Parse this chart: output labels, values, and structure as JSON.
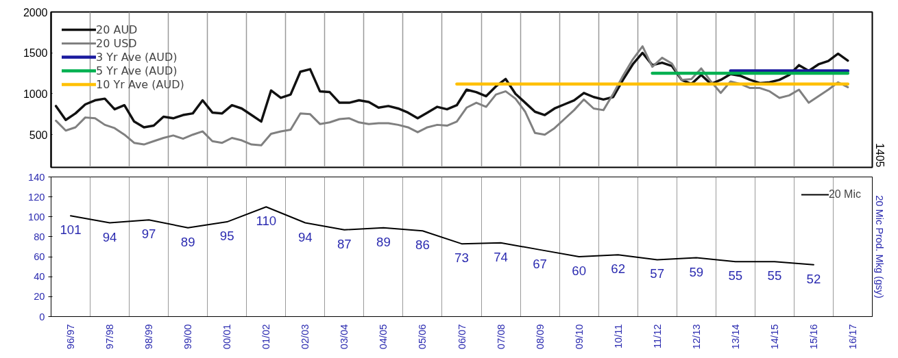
{
  "chart_data": [
    {
      "type": "line",
      "categories": [
        null,
        null,
        null,
        null,
        null,
        null,
        null,
        null,
        null,
        null,
        null,
        null,
        null,
        null,
        null,
        null,
        null,
        null,
        null,
        null,
        null,
        null,
        null,
        null,
        null,
        null,
        null,
        null,
        null,
        null,
        null,
        null,
        null,
        null,
        null,
        null,
        null,
        null,
        null,
        null,
        null,
        null,
        null,
        null,
        null,
        null,
        null,
        null,
        null,
        null,
        null,
        null,
        null,
        null,
        null,
        null,
        null,
        null,
        null,
        null,
        null,
        null,
        null,
        null,
        null,
        null,
        null,
        null,
        null,
        null,
        null,
        null,
        null,
        null,
        null,
        null,
        null,
        null,
        null,
        null,
        null,
        null,
        null,
        null
      ],
      "ylim": [
        100,
        2000
      ],
      "yticks": [
        500,
        1000,
        1500,
        2000
      ],
      "tick_labels": "y",
      "grid": "x",
      "legend": "top left",
      "annotations": [
        "1405"
      ],
      "series": [
        {
          "name": "20 AUD",
          "color": "#111111",
          "values": [
            850,
            680,
            760,
            870,
            920,
            940,
            810,
            860,
            660,
            590,
            610,
            720,
            700,
            740,
            760,
            920,
            770,
            760,
            860,
            820,
            740,
            660,
            1040,
            950,
            990,
            1270,
            1300,
            1030,
            1020,
            890,
            890,
            920,
            900,
            830,
            850,
            820,
            770,
            700,
            770,
            840,
            810,
            860,
            1050,
            1020,
            970,
            1090,
            1180,
            1000,
            890,
            780,
            740,
            820,
            870,
            920,
            1010,
            960,
            930,
            960,
            1170,
            1360,
            1500,
            1350,
            1380,
            1340,
            1170,
            1120,
            1230,
            1120,
            1170,
            1240,
            1220,
            1170,
            1130,
            1140,
            1170,
            1230,
            1350,
            1280,
            1360,
            1400,
            1490,
            1405,
            null,
            null
          ]
        },
        {
          "name": "20 USD",
          "color": "#808080",
          "values": [
            670,
            550,
            590,
            710,
            700,
            620,
            580,
            500,
            400,
            380,
            420,
            460,
            490,
            450,
            500,
            540,
            420,
            400,
            460,
            430,
            380,
            370,
            510,
            540,
            560,
            760,
            750,
            630,
            650,
            690,
            700,
            650,
            630,
            640,
            640,
            620,
            590,
            530,
            590,
            620,
            610,
            660,
            830,
            890,
            840,
            990,
            1030,
            940,
            780,
            520,
            500,
            580,
            690,
            800,
            930,
            820,
            800,
            1000,
            1220,
            1420,
            1580,
            1330,
            1440,
            1370,
            1170,
            1180,
            1310,
            1150,
            1010,
            1150,
            1120,
            1070,
            1070,
            1030,
            950,
            980,
            1050,
            890,
            970,
            1050,
            1140,
            1080,
            null,
            null
          ]
        },
        {
          "name": "3 Yr Ave (AUD)",
          "color": "#1a1a9e",
          "values": [
            null,
            null,
            null,
            null,
            null,
            null,
            null,
            null,
            null,
            null,
            null,
            null,
            null,
            null,
            null,
            null,
            null,
            null,
            null,
            null,
            null,
            null,
            null,
            null,
            null,
            null,
            null,
            null,
            null,
            null,
            null,
            null,
            null,
            null,
            null,
            null,
            null,
            null,
            null,
            null,
            null,
            null,
            null,
            null,
            null,
            null,
            null,
            null,
            null,
            null,
            null,
            null,
            null,
            null,
            null,
            null,
            null,
            null,
            null,
            null,
            null,
            null,
            null,
            null,
            null,
            null,
            null,
            null,
            null,
            1280,
            1280,
            1280,
            1280,
            1280,
            1280,
            1280,
            1280,
            1280,
            1280,
            1280,
            1280,
            1280,
            null,
            null
          ]
        },
        {
          "name": "5 Yr Ave (AUD)",
          "color": "#00b050",
          "values": [
            null,
            null,
            null,
            null,
            null,
            null,
            null,
            null,
            null,
            null,
            null,
            null,
            null,
            null,
            null,
            null,
            null,
            null,
            null,
            null,
            null,
            null,
            null,
            null,
            null,
            null,
            null,
            null,
            null,
            null,
            null,
            null,
            null,
            null,
            null,
            null,
            null,
            null,
            null,
            null,
            null,
            null,
            null,
            null,
            null,
            null,
            null,
            null,
            null,
            null,
            null,
            null,
            null,
            null,
            null,
            null,
            null,
            null,
            null,
            null,
            null,
            1250,
            1250,
            1250,
            1250,
            1250,
            1250,
            1250,
            1250,
            1250,
            1250,
            1250,
            1250,
            1250,
            1250,
            1250,
            1250,
            1250,
            1250,
            1250,
            1250,
            1250,
            null,
            null
          ]
        },
        {
          "name": "10 Yr Ave (AUD)",
          "color": "#ffc000",
          "values": [
            null,
            null,
            null,
            null,
            null,
            null,
            null,
            null,
            null,
            null,
            null,
            null,
            null,
            null,
            null,
            null,
            null,
            null,
            null,
            null,
            null,
            null,
            null,
            null,
            null,
            null,
            null,
            null,
            null,
            null,
            null,
            null,
            null,
            null,
            null,
            null,
            null,
            null,
            null,
            null,
            null,
            1120,
            1120,
            1120,
            1120,
            1120,
            1120,
            1120,
            1120,
            1120,
            1120,
            1120,
            1120,
            1120,
            1120,
            1120,
            1120,
            1120,
            1120,
            1120,
            1120,
            1120,
            1120,
            1120,
            1120,
            1120,
            1120,
            1120,
            1120,
            1120,
            1120,
            1120,
            1120,
            1120,
            1120,
            1120,
            1120,
            1120,
            1120,
            1120,
            1120,
            1120,
            null,
            null
          ]
        }
      ]
    },
    {
      "type": "line",
      "categories": [
        "96/97",
        "97/98",
        "98/99",
        "99/00",
        "00/01",
        "01/02",
        "02/03",
        "03/04",
        "04/05",
        "05/06",
        "06/07",
        "07/08",
        "08/09",
        "09/10",
        "10/11",
        "11/12",
        "12/13",
        "13/14",
        "14/15",
        "15/16",
        "16/17"
      ],
      "ylim": [
        0,
        140
      ],
      "yticks": [
        0,
        20,
        40,
        60,
        80,
        100,
        120,
        140
      ],
      "ylabel": "20 Mic Prod. Mkg (gsy)",
      "grid": "x",
      "legend": "top right",
      "data_labels": true,
      "series": [
        {
          "name": "20 Mic",
          "color": "#000000",
          "values": [
            101,
            94,
            97,
            89,
            95,
            110,
            94,
            87,
            89,
            86,
            73,
            74,
            67,
            60,
            62,
            57,
            59,
            55,
            55,
            52,
            null
          ]
        }
      ]
    }
  ]
}
